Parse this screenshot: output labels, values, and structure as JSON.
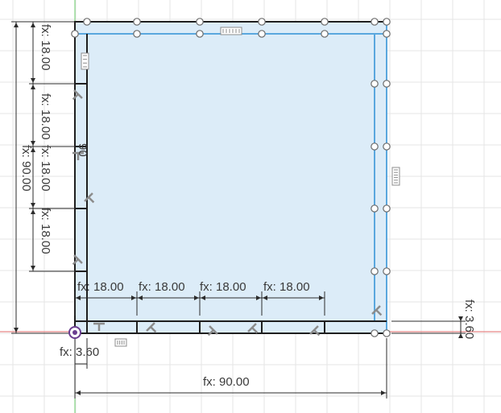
{
  "sketch": {
    "outer_width_label": "fx: 90.00",
    "outer_height_label": "fx: 90.00",
    "wall_thickness_left_label": "fx: 3.60",
    "wall_thickness_right_label": "fx: 3.60",
    "segment_labels_horizontal": [
      "fx: 18.00",
      "fx: 18.00",
      "fx: 18.00",
      "fx: 18.00"
    ],
    "segment_labels_vertical": [
      "fx: 18.00",
      "fx: 18.00",
      "fx: 18.00",
      "fx: 18.00"
    ],
    "vertical_overlap_label": "90",
    "colors": {
      "grid": "#e6e6e6",
      "fill": "#dcecf8",
      "profile_line": "#5aa7de",
      "sketch_line": "#1f1f1f",
      "dimension_line": "#2b2b2b",
      "axis_red": "#e36b6b",
      "axis_green": "#6ccf6c",
      "constraint_glyph": "#8c8c8c",
      "origin": "#6a3d8f"
    },
    "icons": [
      "horizontal-constraint-icon",
      "vertical-constraint-icon",
      "perpendicular-constraint-icon",
      "origin-point-icon"
    ]
  }
}
